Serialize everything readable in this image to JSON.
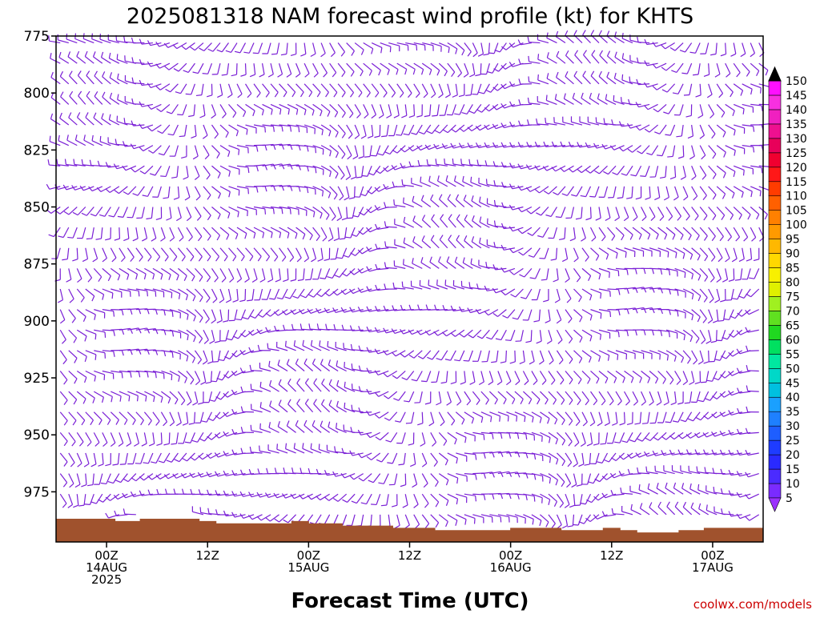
{
  "title": "2025081318 NAM forecast wind profile (kt) for KHTS",
  "credit": "coolwx.com/models",
  "chart_data": {
    "type": "wind-barb-time-height",
    "title": "2025081318 NAM forecast wind profile (kt) for KHTS",
    "xlabel": "Forecast Time (UTC)",
    "ylabel": "",
    "y_ticks": [
      {
        "value": 775,
        "label": "775"
      },
      {
        "value": 800,
        "label": "800"
      },
      {
        "value": 825,
        "label": "825"
      },
      {
        "value": 850,
        "label": "850"
      },
      {
        "value": 875,
        "label": "875"
      },
      {
        "value": 900,
        "label": "900"
      },
      {
        "value": 925,
        "label": "925"
      },
      {
        "value": 950,
        "label": "950"
      },
      {
        "value": 975,
        "label": "975"
      }
    ],
    "ylim": [
      775,
      997
    ],
    "x_ticks": [
      {
        "hour": 6,
        "lines": [
          "00Z",
          "14AUG",
          "2025"
        ]
      },
      {
        "hour": 18,
        "lines": [
          "12Z"
        ]
      },
      {
        "hour": 30,
        "lines": [
          "00Z",
          "15AUG"
        ]
      },
      {
        "hour": 42,
        "lines": [
          "12Z"
        ]
      },
      {
        "hour": 54,
        "lines": [
          "00Z",
          "16AUG"
        ]
      },
      {
        "hour": 66,
        "lines": [
          "12Z"
        ]
      },
      {
        "hour": 78,
        "lines": [
          "00Z",
          "17AUG"
        ]
      }
    ],
    "xlim": [
      0,
      84
    ],
    "time_step_hours": 1,
    "pressure_levels": [
      778,
      787,
      796,
      805,
      814,
      823,
      832,
      841,
      850,
      859,
      868,
      877,
      886,
      895,
      904,
      913,
      922,
      931,
      940,
      949,
      958,
      967,
      976,
      985
    ],
    "barb_color": "#7a1fd6",
    "terrain_color": "#a0522d",
    "surface_pressure": {
      "hours": [
        0,
        5,
        7,
        10,
        15,
        17,
        19,
        25,
        28,
        30,
        34,
        40,
        45,
        52,
        54,
        60,
        61,
        65,
        67,
        69,
        74,
        77,
        84
      ],
      "values": [
        987,
        987,
        988,
        987,
        987,
        988,
        989,
        989,
        988,
        989,
        990,
        991,
        992,
        992,
        991,
        992,
        992,
        991,
        992,
        993,
        992,
        991,
        991
      ]
    },
    "colorbar": {
      "labels": [
        "5",
        "10",
        "15",
        "20",
        "25",
        "30",
        "35",
        "40",
        "45",
        "50",
        "55",
        "60",
        "65",
        "70",
        "75",
        "80",
        "85",
        "90",
        "95",
        "100",
        "105",
        "110",
        "115",
        "120",
        "125",
        "130",
        "135",
        "140",
        "145",
        "150"
      ],
      "colors": [
        "#9b30ff",
        "#7a2bff",
        "#4b2bff",
        "#2a2aff",
        "#1e3cff",
        "#1e5eff",
        "#1e80ff",
        "#1aa0ff",
        "#00c0e0",
        "#00d8c8",
        "#00e8a0",
        "#00e060",
        "#20d820",
        "#60e020",
        "#a0f020",
        "#e0f000",
        "#f8f000",
        "#ffd800",
        "#ffb800",
        "#ff9a00",
        "#ff8000",
        "#ff6000",
        "#ff3c00",
        "#ff1818",
        "#f00030",
        "#e8005a",
        "#ee1090",
        "#f020c0",
        "#f830e0",
        "#ff10ff"
      ]
    }
  }
}
